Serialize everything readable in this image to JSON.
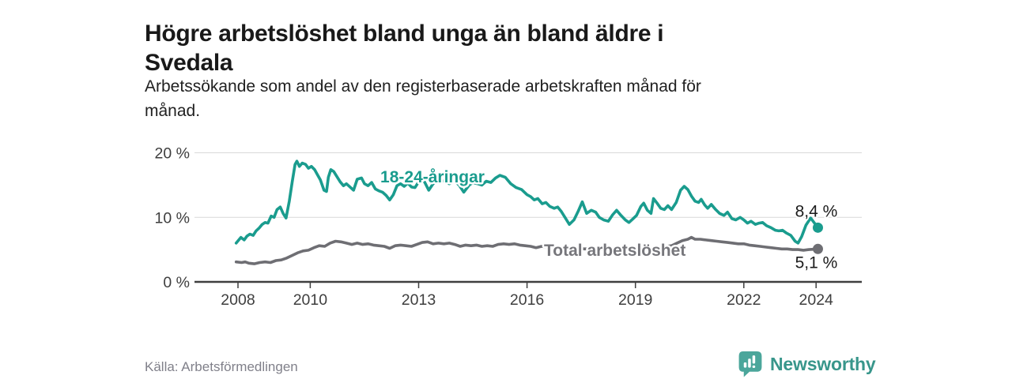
{
  "header": {
    "title_lines": [
      "Högre arbetslöshet bland unga än bland äldre i",
      "Svedala"
    ],
    "subtitle_lines": [
      "Arbetssökande som andel av den registerbaserade arbetskraften månad för",
      "månad."
    ]
  },
  "chart_data": {
    "type": "line",
    "title": "Högre arbetslöshet bland unga än bland äldre i Svedala",
    "subtitle": "Arbetssökande som andel av den registerbaserade arbetskraften månad för månad.",
    "xlabel": "",
    "ylabel": "",
    "ylim": [
      0,
      20
    ],
    "x_range": [
      2007.9,
      2024.3
    ],
    "grid": "horizontal",
    "legend_position": "inline-labels",
    "yticks": [
      {
        "value": 20,
        "label": "20 %"
      },
      {
        "value": 10,
        "label": "10 %"
      },
      {
        "value": 0,
        "label": "0 %"
      }
    ],
    "xticks": [
      {
        "value": 2008,
        "label": "2008"
      },
      {
        "value": 2010,
        "label": "2010"
      },
      {
        "value": 2013,
        "label": "2013"
      },
      {
        "value": 2016,
        "label": "2016"
      },
      {
        "value": 2019,
        "label": "2019"
      },
      {
        "value": 2022,
        "label": "2022"
      },
      {
        "value": 2024,
        "label": "2024"
      }
    ],
    "series": [
      {
        "id": "youth",
        "name": "18-24-åringar",
        "label_text": "18-24-åringar",
        "color": "#1a9c8e",
        "label_color": "#1a9c8e",
        "end_label": "8,4 %",
        "end_value": 8.4,
        "points": [
          [
            2007.95,
            6.0
          ],
          [
            2008.08,
            6.9
          ],
          [
            2008.17,
            6.5
          ],
          [
            2008.25,
            7.1
          ],
          [
            2008.33,
            7.4
          ],
          [
            2008.42,
            7.2
          ],
          [
            2008.5,
            7.9
          ],
          [
            2008.58,
            8.3
          ],
          [
            2008.67,
            8.9
          ],
          [
            2008.75,
            9.2
          ],
          [
            2008.83,
            9.1
          ],
          [
            2008.92,
            10.2
          ],
          [
            2009.0,
            10.0
          ],
          [
            2009.08,
            11.2
          ],
          [
            2009.17,
            11.6
          ],
          [
            2009.25,
            10.6
          ],
          [
            2009.33,
            9.9
          ],
          [
            2009.42,
            12.5
          ],
          [
            2009.5,
            15.5
          ],
          [
            2009.58,
            18.2
          ],
          [
            2009.63,
            18.7
          ],
          [
            2009.7,
            17.9
          ],
          [
            2009.78,
            18.4
          ],
          [
            2009.87,
            18.2
          ],
          [
            2009.95,
            17.6
          ],
          [
            2010.03,
            17.9
          ],
          [
            2010.12,
            17.4
          ],
          [
            2010.2,
            16.6
          ],
          [
            2010.28,
            15.8
          ],
          [
            2010.38,
            14.2
          ],
          [
            2010.45,
            14.0
          ],
          [
            2010.5,
            16.2
          ],
          [
            2010.57,
            17.4
          ],
          [
            2010.65,
            17.1
          ],
          [
            2010.75,
            16.2
          ],
          [
            2010.83,
            15.5
          ],
          [
            2010.92,
            14.9
          ],
          [
            2011.0,
            15.2
          ],
          [
            2011.1,
            14.7
          ],
          [
            2011.2,
            14.2
          ],
          [
            2011.3,
            15.9
          ],
          [
            2011.42,
            16.1
          ],
          [
            2011.5,
            15.2
          ],
          [
            2011.6,
            14.9
          ],
          [
            2011.7,
            15.4
          ],
          [
            2011.8,
            14.4
          ],
          [
            2011.9,
            14.1
          ],
          [
            2012.0,
            13.9
          ],
          [
            2012.1,
            13.4
          ],
          [
            2012.2,
            12.7
          ],
          [
            2012.3,
            13.5
          ],
          [
            2012.4,
            14.9
          ],
          [
            2012.5,
            15.2
          ],
          [
            2012.6,
            14.8
          ],
          [
            2012.7,
            15.3
          ],
          [
            2012.8,
            14.7
          ],
          [
            2012.9,
            14.6
          ],
          [
            2013.0,
            15.5
          ],
          [
            2013.08,
            16.1
          ],
          [
            2013.17,
            15.4
          ],
          [
            2013.28,
            14.2
          ],
          [
            2013.4,
            15.2
          ],
          [
            2013.55,
            15.8
          ],
          [
            2013.7,
            15.6
          ],
          [
            2013.85,
            15.2
          ],
          [
            2014.0,
            15.6
          ],
          [
            2014.12,
            15.0
          ],
          [
            2014.25,
            13.9
          ],
          [
            2014.4,
            15.0
          ],
          [
            2014.5,
            15.4
          ],
          [
            2014.63,
            15.2
          ],
          [
            2014.75,
            15.0
          ],
          [
            2014.87,
            15.6
          ],
          [
            2015.0,
            15.4
          ],
          [
            2015.13,
            16.1
          ],
          [
            2015.25,
            16.5
          ],
          [
            2015.4,
            16.2
          ],
          [
            2015.55,
            15.2
          ],
          [
            2015.7,
            14.6
          ],
          [
            2015.85,
            14.3
          ],
          [
            2016.0,
            13.5
          ],
          [
            2016.1,
            13.2
          ],
          [
            2016.2,
            12.7
          ],
          [
            2016.3,
            12.9
          ],
          [
            2016.42,
            12.1
          ],
          [
            2016.52,
            12.3
          ],
          [
            2016.63,
            11.7
          ],
          [
            2016.75,
            11.4
          ],
          [
            2016.85,
            11.6
          ],
          [
            2016.95,
            10.9
          ],
          [
            2017.05,
            10.0
          ],
          [
            2017.17,
            8.9
          ],
          [
            2017.3,
            9.6
          ],
          [
            2017.42,
            11.0
          ],
          [
            2017.53,
            12.4
          ],
          [
            2017.65,
            10.6
          ],
          [
            2017.78,
            11.1
          ],
          [
            2017.9,
            10.8
          ],
          [
            2018.0,
            10.0
          ],
          [
            2018.12,
            9.6
          ],
          [
            2018.25,
            9.4
          ],
          [
            2018.37,
            10.4
          ],
          [
            2018.48,
            11.1
          ],
          [
            2018.6,
            10.3
          ],
          [
            2018.72,
            9.6
          ],
          [
            2018.82,
            9.2
          ],
          [
            2018.92,
            9.7
          ],
          [
            2019.03,
            10.3
          ],
          [
            2019.15,
            11.7
          ],
          [
            2019.23,
            12.2
          ],
          [
            2019.33,
            11.1
          ],
          [
            2019.43,
            10.6
          ],
          [
            2019.5,
            12.9
          ],
          [
            2019.6,
            12.2
          ],
          [
            2019.7,
            11.4
          ],
          [
            2019.8,
            11.2
          ],
          [
            2019.9,
            11.8
          ],
          [
            2020.0,
            11.2
          ],
          [
            2020.13,
            12.3
          ],
          [
            2020.25,
            14.2
          ],
          [
            2020.35,
            14.8
          ],
          [
            2020.45,
            14.3
          ],
          [
            2020.55,
            13.3
          ],
          [
            2020.65,
            12.5
          ],
          [
            2020.75,
            12.3
          ],
          [
            2020.82,
            12.8
          ],
          [
            2020.92,
            11.9
          ],
          [
            2021.0,
            11.4
          ],
          [
            2021.1,
            12.0
          ],
          [
            2021.22,
            11.2
          ],
          [
            2021.33,
            10.6
          ],
          [
            2021.45,
            10.3
          ],
          [
            2021.55,
            10.8
          ],
          [
            2021.67,
            9.8
          ],
          [
            2021.78,
            9.6
          ],
          [
            2021.9,
            10.0
          ],
          [
            2022.0,
            9.6
          ],
          [
            2022.1,
            9.1
          ],
          [
            2022.2,
            9.4
          ],
          [
            2022.32,
            8.9
          ],
          [
            2022.42,
            9.1
          ],
          [
            2022.52,
            9.2
          ],
          [
            2022.63,
            8.7
          ],
          [
            2022.75,
            8.4
          ],
          [
            2022.87,
            8.0
          ],
          [
            2022.97,
            7.9
          ],
          [
            2023.07,
            8.0
          ],
          [
            2023.17,
            7.6
          ],
          [
            2023.3,
            7.2
          ],
          [
            2023.42,
            6.3
          ],
          [
            2023.5,
            6.0
          ],
          [
            2023.6,
            7.0
          ],
          [
            2023.72,
            8.8
          ],
          [
            2023.85,
            9.9
          ],
          [
            2024.05,
            8.4
          ]
        ]
      },
      {
        "id": "total",
        "name": "Total arbetslöshet",
        "label_text": "Total arbetslöshet",
        "color": "#6e6e73",
        "label_color": "#76767b",
        "end_label": "5,1 %",
        "end_value": 5.1,
        "points": [
          [
            2007.95,
            3.1
          ],
          [
            2008.1,
            3.0
          ],
          [
            2008.2,
            3.1
          ],
          [
            2008.3,
            2.9
          ],
          [
            2008.45,
            2.8
          ],
          [
            2008.6,
            3.0
          ],
          [
            2008.75,
            3.1
          ],
          [
            2008.9,
            3.0
          ],
          [
            2009.05,
            3.3
          ],
          [
            2009.2,
            3.4
          ],
          [
            2009.35,
            3.7
          ],
          [
            2009.5,
            4.1
          ],
          [
            2009.65,
            4.5
          ],
          [
            2009.8,
            4.8
          ],
          [
            2009.95,
            4.9
          ],
          [
            2010.1,
            5.3
          ],
          [
            2010.25,
            5.6
          ],
          [
            2010.4,
            5.5
          ],
          [
            2010.55,
            6.0
          ],
          [
            2010.7,
            6.3
          ],
          [
            2010.85,
            6.2
          ],
          [
            2011.0,
            6.0
          ],
          [
            2011.15,
            5.8
          ],
          [
            2011.3,
            6.0
          ],
          [
            2011.45,
            5.8
          ],
          [
            2011.6,
            5.9
          ],
          [
            2011.75,
            5.7
          ],
          [
            2011.9,
            5.6
          ],
          [
            2012.05,
            5.5
          ],
          [
            2012.2,
            5.2
          ],
          [
            2012.35,
            5.6
          ],
          [
            2012.5,
            5.7
          ],
          [
            2012.65,
            5.6
          ],
          [
            2012.8,
            5.5
          ],
          [
            2012.95,
            5.8
          ],
          [
            2013.1,
            6.1
          ],
          [
            2013.25,
            6.2
          ],
          [
            2013.4,
            5.9
          ],
          [
            2013.55,
            6.0
          ],
          [
            2013.7,
            5.9
          ],
          [
            2013.85,
            6.0
          ],
          [
            2014.0,
            5.8
          ],
          [
            2014.15,
            5.5
          ],
          [
            2014.3,
            5.7
          ],
          [
            2014.45,
            5.6
          ],
          [
            2014.6,
            5.7
          ],
          [
            2014.75,
            5.5
          ],
          [
            2014.9,
            5.6
          ],
          [
            2015.05,
            5.5
          ],
          [
            2015.2,
            5.8
          ],
          [
            2015.35,
            5.9
          ],
          [
            2015.5,
            5.8
          ],
          [
            2015.65,
            5.9
          ],
          [
            2015.8,
            5.7
          ],
          [
            2015.95,
            5.6
          ],
          [
            2016.1,
            5.5
          ],
          [
            2016.25,
            5.3
          ],
          [
            2016.4,
            5.5
          ],
          [
            2016.55,
            5.4
          ],
          [
            2016.7,
            5.3
          ],
          [
            2016.85,
            5.2
          ],
          [
            2017.0,
            5.2
          ],
          [
            2017.15,
            5.0
          ],
          [
            2017.3,
            5.1
          ],
          [
            2017.45,
            5.2
          ],
          [
            2017.6,
            5.1
          ],
          [
            2017.75,
            5.2
          ],
          [
            2017.9,
            5.1
          ],
          [
            2018.05,
            5.0
          ],
          [
            2018.2,
            4.9
          ],
          [
            2018.35,
            5.0
          ],
          [
            2018.5,
            5.0
          ],
          [
            2018.65,
            4.9
          ],
          [
            2018.8,
            4.9
          ],
          [
            2018.95,
            5.0
          ],
          [
            2019.1,
            5.1
          ],
          [
            2019.25,
            5.1
          ],
          [
            2019.4,
            5.2
          ],
          [
            2019.55,
            5.3
          ],
          [
            2019.7,
            5.4
          ],
          [
            2019.85,
            5.5
          ],
          [
            2020.0,
            5.6
          ],
          [
            2020.15,
            6.0
          ],
          [
            2020.3,
            6.4
          ],
          [
            2020.45,
            6.6
          ],
          [
            2020.55,
            6.9
          ],
          [
            2020.65,
            6.6
          ],
          [
            2020.8,
            6.6
          ],
          [
            2020.95,
            6.5
          ],
          [
            2021.1,
            6.4
          ],
          [
            2021.25,
            6.3
          ],
          [
            2021.4,
            6.2
          ],
          [
            2021.55,
            6.1
          ],
          [
            2021.7,
            6.0
          ],
          [
            2021.85,
            5.9
          ],
          [
            2022.0,
            5.9
          ],
          [
            2022.15,
            5.7
          ],
          [
            2022.3,
            5.6
          ],
          [
            2022.45,
            5.5
          ],
          [
            2022.6,
            5.4
          ],
          [
            2022.75,
            5.3
          ],
          [
            2022.9,
            5.2
          ],
          [
            2023.05,
            5.1
          ],
          [
            2023.2,
            5.1
          ],
          [
            2023.35,
            5.0
          ],
          [
            2023.5,
            5.0
          ],
          [
            2023.65,
            4.9
          ],
          [
            2023.8,
            5.0
          ],
          [
            2024.05,
            5.1
          ]
        ]
      }
    ]
  },
  "colors": {
    "accent_teal": "#1a9c8e",
    "series_gray": "#6e6e73",
    "gridline": "#d9d9d9",
    "axis": "#3f3f3f",
    "logo_teal": "#4ba69b",
    "wordmark_teal": "#38968b"
  },
  "footer": {
    "source": "Källa: Arbetsförmedlingen",
    "brand": "Newsworthy"
  }
}
